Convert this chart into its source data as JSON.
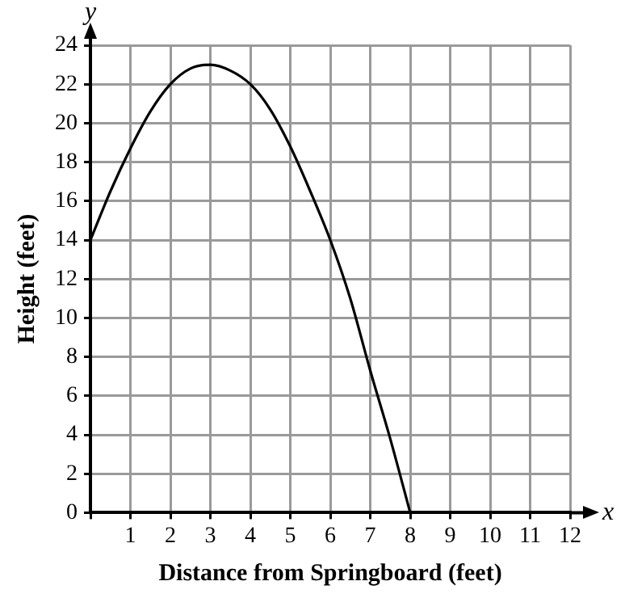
{
  "chart_data": {
    "type": "line",
    "xlabel": "Distance from Springboard (feet)",
    "ylabel": "Height (feet)",
    "annotations": [
      "x",
      "y"
    ],
    "x": [
      0,
      0.5,
      1,
      1.5,
      2,
      2.5,
      3,
      3.5,
      4,
      4.5,
      5,
      5.5,
      6,
      6.5,
      7,
      7.5,
      8
    ],
    "series": [
      {
        "color": "#000000",
        "values": [
          14,
          16.5,
          18.7,
          20.6,
          22,
          22.8,
          23,
          22.7,
          22,
          20.7,
          18.8,
          16.5,
          14,
          11,
          7.3,
          3.8,
          0
        ]
      }
    ],
    "xlim": [
      0,
      12
    ],
    "ylim": [
      0,
      24
    ],
    "xticks": [
      {
        "value": 0,
        "label": null
      },
      1,
      2,
      3,
      4,
      5,
      6,
      7,
      8,
      9,
      10,
      11,
      12
    ],
    "yticks": [
      0,
      2,
      4,
      6,
      8,
      10,
      12,
      14,
      16,
      18,
      20,
      22,
      24
    ],
    "grid": true,
    "marker": "none",
    "line_style": "solid",
    "legend": false
  }
}
